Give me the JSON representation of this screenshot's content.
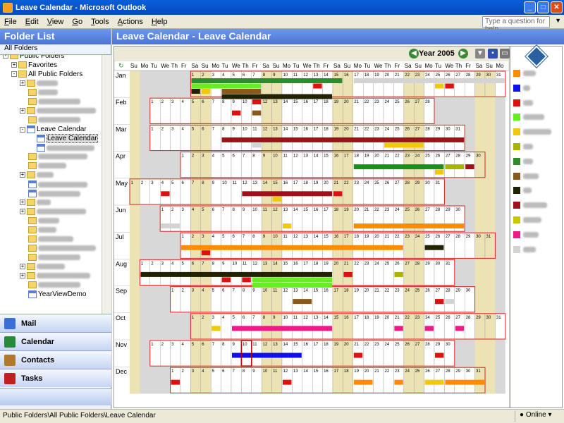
{
  "window": {
    "title": "Leave Calendar - Microsoft Outlook",
    "help_placeholder": "Type a question for help"
  },
  "menu": [
    "File",
    "Edit",
    "View",
    "Go",
    "Tools",
    "Actions",
    "Help"
  ],
  "sidebar": {
    "title": "Folder List",
    "all_folders": "All Folders",
    "tree": [
      {
        "label": "Public Folders",
        "indent": 1,
        "toggle": "-",
        "type": "folder",
        "blur": false
      },
      {
        "label": "Favorites",
        "indent": 2,
        "toggle": "+",
        "type": "folder",
        "blur": false
      },
      {
        "label": "All Public Folders",
        "indent": 2,
        "toggle": "-",
        "type": "folder",
        "blur": false
      },
      {
        "label": "",
        "indent": 3,
        "toggle": "+",
        "type": "folder",
        "blur": true,
        "w": 30
      },
      {
        "label": "",
        "indent": 3,
        "toggle": "",
        "type": "folder",
        "blur": true,
        "w": 28
      },
      {
        "label": "",
        "indent": 3,
        "toggle": "",
        "type": "folder",
        "blur": true,
        "w": 60
      },
      {
        "label": "",
        "indent": 3,
        "toggle": "+",
        "type": "folder",
        "blur": true,
        "w": 84
      },
      {
        "label": "",
        "indent": 3,
        "toggle": "",
        "type": "folder",
        "blur": true,
        "w": 60
      },
      {
        "label": "Leave Calendar",
        "indent": 3,
        "toggle": "-",
        "type": "cal",
        "blur": false
      },
      {
        "label": "Leave Calendar",
        "indent": 4,
        "toggle": "",
        "type": "cal",
        "blur": false,
        "selected": true
      },
      {
        "label": "",
        "indent": 4,
        "toggle": "",
        "type": "cal",
        "blur": true,
        "w": 68
      },
      {
        "label": "",
        "indent": 3,
        "toggle": "",
        "type": "folder",
        "blur": true,
        "w": 70
      },
      {
        "label": "",
        "indent": 3,
        "toggle": "",
        "type": "folder",
        "blur": true,
        "w": 40
      },
      {
        "label": "",
        "indent": 3,
        "toggle": "+",
        "type": "folder",
        "blur": true,
        "w": 24
      },
      {
        "label": "",
        "indent": 3,
        "toggle": "",
        "type": "cal",
        "blur": true,
        "w": 70
      },
      {
        "label": "",
        "indent": 3,
        "toggle": "",
        "type": "cal",
        "blur": true,
        "w": 60
      },
      {
        "label": "",
        "indent": 3,
        "toggle": "+",
        "type": "folder",
        "blur": true,
        "w": 20
      },
      {
        "label": "",
        "indent": 3,
        "toggle": "+",
        "type": "folder",
        "blur": true,
        "w": 70
      },
      {
        "label": "",
        "indent": 3,
        "toggle": "",
        "type": "folder",
        "blur": true,
        "w": 30
      },
      {
        "label": "",
        "indent": 3,
        "toggle": "",
        "type": "folder",
        "blur": true,
        "w": 26
      },
      {
        "label": "",
        "indent": 3,
        "toggle": "",
        "type": "folder",
        "blur": true,
        "w": 50
      },
      {
        "label": "",
        "indent": 3,
        "toggle": "",
        "type": "folder",
        "blur": true,
        "w": 82
      },
      {
        "label": "",
        "indent": 3,
        "toggle": "",
        "type": "folder",
        "blur": true,
        "w": 60
      },
      {
        "label": "",
        "indent": 3,
        "toggle": "+",
        "type": "folder",
        "blur": true,
        "w": 40
      },
      {
        "label": "",
        "indent": 3,
        "toggle": "+",
        "type": "folder",
        "blur": true,
        "w": 76
      },
      {
        "label": "",
        "indent": 3,
        "toggle": "",
        "type": "folder",
        "blur": true,
        "w": 60
      },
      {
        "label": "YearViewDemo",
        "indent": 3,
        "toggle": "",
        "type": "cal",
        "blur": false
      }
    ],
    "nav": [
      {
        "label": "Mail",
        "color": "#3b6fd6"
      },
      {
        "label": "Calendar",
        "color": "#2a8a3a"
      },
      {
        "label": "Contacts",
        "color": "#b07a2a"
      },
      {
        "label": "Tasks",
        "color": "#c02020"
      }
    ]
  },
  "main": {
    "title": "Leave Calendar - Leave Calendar",
    "year": "Year 2005",
    "dow": [
      "Su",
      "Mo",
      "Tu",
      "We",
      "Th",
      "Fr",
      "Sa"
    ],
    "months": [
      {
        "name": "Jan",
        "start": 6,
        "days": 31
      },
      {
        "name": "Feb",
        "start": 2,
        "days": 28
      },
      {
        "name": "Mar",
        "start": 2,
        "days": 31
      },
      {
        "name": "Apr",
        "start": 5,
        "days": 30
      },
      {
        "name": "May",
        "start": 0,
        "days": 31
      },
      {
        "name": "Jun",
        "start": 3,
        "days": 30
      },
      {
        "name": "Jul",
        "start": 5,
        "days": 31
      },
      {
        "name": "Aug",
        "start": 1,
        "days": 31
      },
      {
        "name": "Sep",
        "start": 4,
        "days": 30
      },
      {
        "name": "Oct",
        "start": 6,
        "days": 31
      },
      {
        "name": "Nov",
        "start": 2,
        "days": 30
      },
      {
        "name": "Dec",
        "start": 4,
        "days": 31
      }
    ],
    "bars": [
      {
        "m": 0,
        "lane": 0,
        "from": 1,
        "to": 15,
        "color": "#2e8b2e"
      },
      {
        "m": 0,
        "lane": 0,
        "from": 17,
        "to": 31,
        "color": "#d3d3d3"
      },
      {
        "m": 0,
        "lane": 1,
        "from": 1,
        "to": 7,
        "color": "#66ee22"
      },
      {
        "m": 0,
        "lane": 1,
        "from": 13,
        "to": 13,
        "color": "#dd1111"
      },
      {
        "m": 0,
        "lane": 1,
        "from": 26,
        "to": 26,
        "color": "#dd1111"
      },
      {
        "m": 0,
        "lane": 1,
        "from": 25,
        "to": 25,
        "color": "#f2c80f"
      },
      {
        "m": 0,
        "lane": 2,
        "from": 1,
        "to": 1,
        "color": "#222200"
      },
      {
        "m": 0,
        "lane": 2,
        "from": 2,
        "to": 2,
        "color": "#f2c80f"
      },
      {
        "m": 0,
        "lane": 2,
        "from": 4,
        "to": 7,
        "color": "#8b5a1a"
      },
      {
        "m": 0,
        "lane": 3,
        "from": 4,
        "to": 14,
        "color": "#222200"
      },
      {
        "m": 0,
        "lane": 4,
        "from": 7,
        "to": 7,
        "color": "#dd1111"
      },
      {
        "m": 1,
        "lane": 1,
        "from": 9,
        "to": 9,
        "color": "#dd1111"
      },
      {
        "m": 1,
        "lane": 1,
        "from": 11,
        "to": 11,
        "color": "#8b5a1a"
      },
      {
        "m": 2,
        "lane": 1,
        "from": 8,
        "to": 31,
        "color": "#a0101a"
      },
      {
        "m": 2,
        "lane": 2,
        "from": 11,
        "to": 11,
        "color": "#d3d3d3"
      },
      {
        "m": 2,
        "lane": 2,
        "from": 24,
        "to": 27,
        "color": "#f2c80f"
      },
      {
        "m": 3,
        "lane": 1,
        "from": 18,
        "to": 26,
        "color": "#1b8f1b"
      },
      {
        "m": 3,
        "lane": 1,
        "from": 27,
        "to": 28,
        "color": "#a8b400"
      },
      {
        "m": 3,
        "lane": 1,
        "from": 29,
        "to": 29,
        "color": "#a0101a"
      },
      {
        "m": 3,
        "lane": 2,
        "from": 26,
        "to": 26,
        "color": "#f2c80f"
      },
      {
        "m": 4,
        "lane": 1,
        "from": 4,
        "to": 4,
        "color": "#dd1111"
      },
      {
        "m": 4,
        "lane": 1,
        "from": 12,
        "to": 20,
        "color": "#a0101a"
      },
      {
        "m": 4,
        "lane": 1,
        "from": 21,
        "to": 21,
        "color": "#dd1111"
      },
      {
        "m": 4,
        "lane": 2,
        "from": 15,
        "to": 15,
        "color": "#f2c80f"
      },
      {
        "m": 5,
        "lane": 2,
        "from": 1,
        "to": 2,
        "color": "#d3d3d3"
      },
      {
        "m": 5,
        "lane": 2,
        "from": 13,
        "to": 13,
        "color": "#f2c80f"
      },
      {
        "m": 5,
        "lane": 2,
        "from": 20,
        "to": 30,
        "color": "#ff8c00"
      },
      {
        "m": 6,
        "lane": 1,
        "from": 1,
        "to": 22,
        "color": "#ff8c00"
      },
      {
        "m": 6,
        "lane": 1,
        "from": 25,
        "to": 26,
        "color": "#222200"
      },
      {
        "m": 6,
        "lane": 2,
        "from": 3,
        "to": 3,
        "color": "#dd1111"
      },
      {
        "m": 7,
        "lane": 1,
        "from": 1,
        "to": 19,
        "color": "#222200"
      },
      {
        "m": 7,
        "lane": 1,
        "from": 21,
        "to": 21,
        "color": "#dd1111"
      },
      {
        "m": 7,
        "lane": 1,
        "from": 26,
        "to": 26,
        "color": "#a8b400"
      },
      {
        "m": 7,
        "lane": 2,
        "from": 9,
        "to": 9,
        "color": "#dd1111"
      },
      {
        "m": 7,
        "lane": 2,
        "from": 11,
        "to": 11,
        "color": "#dd1111"
      },
      {
        "m": 7,
        "lane": 2,
        "from": 12,
        "to": 19,
        "color": "#66ee22"
      },
      {
        "m": 7,
        "lane": 3,
        "from": 12,
        "to": 19,
        "color": "#66ee22"
      },
      {
        "m": 8,
        "lane": 1,
        "from": 13,
        "to": 14,
        "color": "#8b5a1a"
      },
      {
        "m": 8,
        "lane": 1,
        "from": 27,
        "to": 27,
        "color": "#dd1111"
      },
      {
        "m": 8,
        "lane": 1,
        "from": 28,
        "to": 28,
        "color": "#d3d3d3"
      },
      {
        "m": 9,
        "lane": 1,
        "from": 3,
        "to": 3,
        "color": "#f2c80f"
      },
      {
        "m": 9,
        "lane": 1,
        "from": 5,
        "to": 14,
        "color": "#ee1a88"
      },
      {
        "m": 9,
        "lane": 1,
        "from": 21,
        "to": 21,
        "color": "#ee1a88"
      },
      {
        "m": 9,
        "lane": 1,
        "from": 24,
        "to": 24,
        "color": "#ee1a88"
      },
      {
        "m": 9,
        "lane": 1,
        "from": 27,
        "to": 27,
        "color": "#ee1a88"
      },
      {
        "m": 10,
        "lane": 1,
        "from": 9,
        "to": 15,
        "color": "#1010ee"
      },
      {
        "m": 10,
        "lane": 1,
        "from": 21,
        "to": 21,
        "color": "#dd1111"
      },
      {
        "m": 10,
        "lane": 1,
        "from": 29,
        "to": 29,
        "color": "#dd1111"
      },
      {
        "m": 11,
        "lane": 1,
        "from": 1,
        "to": 1,
        "color": "#dd1111"
      },
      {
        "m": 11,
        "lane": 1,
        "from": 12,
        "to": 12,
        "color": "#dd1111"
      },
      {
        "m": 11,
        "lane": 1,
        "from": 19,
        "to": 20,
        "color": "#ff8c00"
      },
      {
        "m": 11,
        "lane": 1,
        "from": 23,
        "to": 23,
        "color": "#ff8c00"
      },
      {
        "m": 11,
        "lane": 1,
        "from": 26,
        "to": 27,
        "color": "#f2c80f"
      },
      {
        "m": 11,
        "lane": 1,
        "from": 28,
        "to": 31,
        "color": "#ff8c00"
      }
    ],
    "selected_day": {
      "m": 10,
      "d": 10
    },
    "legend": [
      {
        "label": "",
        "color": "#ff8c00",
        "w": 18
      },
      {
        "label": "",
        "color": "#1010ee",
        "w": 10
      },
      {
        "label": "",
        "color": "#dd1111",
        "w": 14
      },
      {
        "label": "",
        "color": "#66ee22",
        "w": 30
      },
      {
        "label": "",
        "color": "#f2c80f",
        "w": 40
      },
      {
        "label": "",
        "color": "#a8b400",
        "w": 14
      },
      {
        "label": "",
        "color": "#2e8b2e",
        "w": 14
      },
      {
        "label": "",
        "color": "#8b5a1a",
        "w": 22
      },
      {
        "label": "",
        "color": "#222200",
        "w": 12
      },
      {
        "label": "",
        "color": "#a0101a",
        "w": 34
      },
      {
        "label": "",
        "color": "#c8c800",
        "w": 26
      },
      {
        "label": "",
        "color": "#ee1a88",
        "w": 22
      },
      {
        "label": "",
        "color": "#d3d3d3",
        "w": 18
      }
    ]
  },
  "status": {
    "path": "Public Folders\\All Public Folders\\Leave Calendar",
    "online": "Online"
  }
}
